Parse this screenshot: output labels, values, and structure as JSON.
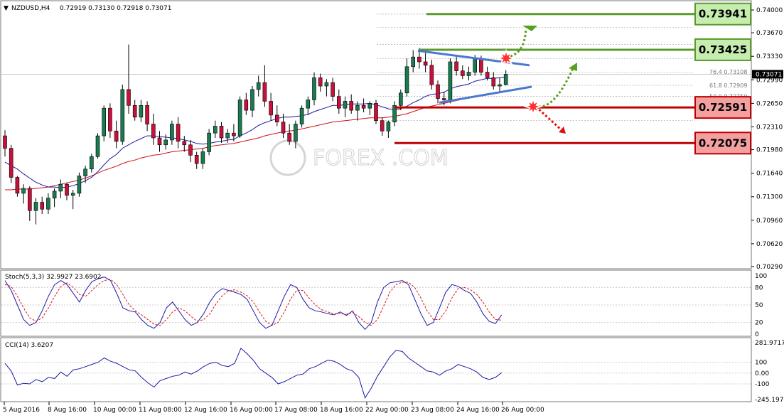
{
  "header": {
    "symbol": "NZDUSD,H4",
    "ohlc": "0.72919 0.73130 0.72918 0.73071"
  },
  "current_price_label": "0.73071",
  "price_axis_labels": [
    "0.74000",
    "0.73670",
    "0.73330",
    "0.72990",
    "0.72650",
    "0.72310",
    "0.71980",
    "0.71640",
    "0.71300",
    "0.70960",
    "0.70620",
    "0.70290"
  ],
  "time_axis_labels": [
    "5 Aug 2016",
    "8 Aug 16:00",
    "10 Aug 00:00",
    "11 Aug 08:00",
    "12 Aug 16:00",
    "16 Aug 00:00",
    "17 Aug 08:00",
    "18 Aug 16:00",
    "22 Aug 00:00",
    "23 Aug 08:00",
    "24 Aug 16:00",
    "26 Aug 00:00"
  ],
  "fib_labels": [
    {
      "text": "76.4  0.73108",
      "level": 0.73108
    },
    {
      "text": "61.8  0.72909",
      "level": 0.72909
    },
    {
      "text": "50.0  0.72750",
      "level": 0.7275
    }
  ],
  "levels": [
    {
      "label": "0.73941",
      "value": 0.73941,
      "type": "resistance",
      "color": "#5a9a2a",
      "bg": "#c6ecb0"
    },
    {
      "label": "0.73425",
      "value": 0.73425,
      "type": "resistance",
      "color": "#5a9a2a",
      "bg": "#c6ecb0"
    },
    {
      "label": "0.72591",
      "value": 0.72591,
      "type": "support",
      "color": "#c00000",
      "bg": "#f4a0a0"
    },
    {
      "label": "0.72075",
      "value": 0.72075,
      "type": "support",
      "color": "#c00000",
      "bg": "#f4a0a0"
    }
  ],
  "watermark": "FOREX  .COM",
  "stoch": {
    "title": "Stoch(5,3,3) 32.9927 23.6902",
    "axis_labels": [
      "100",
      "80",
      "50",
      "20",
      "0"
    ]
  },
  "cci": {
    "title": "CCI(14) 3.6207",
    "axis_labels": [
      "281.9717",
      "100",
      "0.00",
      "-100",
      "-245.1973"
    ]
  },
  "chart_data": {
    "type": "line",
    "title": "NZDUSD,H4",
    "ylim": [
      0.7029,
      0.74
    ],
    "candles": [
      {
        "o": 0.7218,
        "h": 0.7226,
        "l": 0.7188,
        "c": 0.72
      },
      {
        "o": 0.72,
        "h": 0.7205,
        "l": 0.715,
        "c": 0.7158
      },
      {
        "o": 0.7158,
        "h": 0.716,
        "l": 0.713,
        "c": 0.7135
      },
      {
        "o": 0.7135,
        "h": 0.7148,
        "l": 0.712,
        "c": 0.7142
      },
      {
        "o": 0.7142,
        "h": 0.7145,
        "l": 0.7095,
        "c": 0.711
      },
      {
        "o": 0.711,
        "h": 0.7128,
        "l": 0.709,
        "c": 0.7122
      },
      {
        "o": 0.7122,
        "h": 0.713,
        "l": 0.7105,
        "c": 0.7112
      },
      {
        "o": 0.7112,
        "h": 0.7135,
        "l": 0.7105,
        "c": 0.7128
      },
      {
        "o": 0.7128,
        "h": 0.7142,
        "l": 0.7115,
        "c": 0.7138
      },
      {
        "o": 0.7138,
        "h": 0.7155,
        "l": 0.7128,
        "c": 0.7148
      },
      {
        "o": 0.7148,
        "h": 0.715,
        "l": 0.7125,
        "c": 0.7132
      },
      {
        "o": 0.7132,
        "h": 0.714,
        "l": 0.7112,
        "c": 0.7135
      },
      {
        "o": 0.7135,
        "h": 0.7165,
        "l": 0.713,
        "c": 0.716
      },
      {
        "o": 0.716,
        "h": 0.7175,
        "l": 0.715,
        "c": 0.717
      },
      {
        "o": 0.717,
        "h": 0.7192,
        "l": 0.7165,
        "c": 0.7188
      },
      {
        "o": 0.7188,
        "h": 0.7222,
        "l": 0.7185,
        "c": 0.7218
      },
      {
        "o": 0.7218,
        "h": 0.7262,
        "l": 0.721,
        "c": 0.7258
      },
      {
        "o": 0.7258,
        "h": 0.7265,
        "l": 0.7215,
        "c": 0.7225
      },
      {
        "o": 0.7225,
        "h": 0.724,
        "l": 0.72,
        "c": 0.721
      },
      {
        "o": 0.721,
        "h": 0.7292,
        "l": 0.7205,
        "c": 0.7285
      },
      {
        "o": 0.7285,
        "h": 0.735,
        "l": 0.725,
        "c": 0.7262
      },
      {
        "o": 0.7262,
        "h": 0.727,
        "l": 0.724,
        "c": 0.7245
      },
      {
        "o": 0.7245,
        "h": 0.727,
        "l": 0.7238,
        "c": 0.7262
      },
      {
        "o": 0.7262,
        "h": 0.7268,
        "l": 0.7225,
        "c": 0.7235
      },
      {
        "o": 0.7235,
        "h": 0.725,
        "l": 0.7205,
        "c": 0.7215
      },
      {
        "o": 0.7215,
        "h": 0.7225,
        "l": 0.7195,
        "c": 0.7205
      },
      {
        "o": 0.7205,
        "h": 0.722,
        "l": 0.7198,
        "c": 0.7212
      },
      {
        "o": 0.7212,
        "h": 0.724,
        "l": 0.7205,
        "c": 0.7235
      },
      {
        "o": 0.7235,
        "h": 0.7245,
        "l": 0.72,
        "c": 0.721
      },
      {
        "o": 0.721,
        "h": 0.7218,
        "l": 0.7195,
        "c": 0.7205
      },
      {
        "o": 0.7205,
        "h": 0.7212,
        "l": 0.718,
        "c": 0.719
      },
      {
        "o": 0.719,
        "h": 0.7195,
        "l": 0.717,
        "c": 0.7178
      },
      {
        "o": 0.7178,
        "h": 0.72,
        "l": 0.717,
        "c": 0.7195
      },
      {
        "o": 0.7195,
        "h": 0.7228,
        "l": 0.719,
        "c": 0.7222
      },
      {
        "o": 0.7222,
        "h": 0.724,
        "l": 0.7215,
        "c": 0.7232
      },
      {
        "o": 0.7232,
        "h": 0.7238,
        "l": 0.7208,
        "c": 0.7215
      },
      {
        "o": 0.7215,
        "h": 0.7228,
        "l": 0.7208,
        "c": 0.7222
      },
      {
        "o": 0.7222,
        "h": 0.7235,
        "l": 0.721,
        "c": 0.7218
      },
      {
        "o": 0.7218,
        "h": 0.7275,
        "l": 0.7215,
        "c": 0.727
      },
      {
        "o": 0.727,
        "h": 0.728,
        "l": 0.7248,
        "c": 0.7255
      },
      {
        "o": 0.7255,
        "h": 0.729,
        "l": 0.7245,
        "c": 0.7285
      },
      {
        "o": 0.7285,
        "h": 0.7305,
        "l": 0.7275,
        "c": 0.7295
      },
      {
        "o": 0.7295,
        "h": 0.732,
        "l": 0.726,
        "c": 0.7268
      },
      {
        "o": 0.7268,
        "h": 0.728,
        "l": 0.724,
        "c": 0.7248
      },
      {
        "o": 0.7248,
        "h": 0.7262,
        "l": 0.7232,
        "c": 0.7238
      },
      {
        "o": 0.7238,
        "h": 0.725,
        "l": 0.7215,
        "c": 0.7222
      },
      {
        "o": 0.7222,
        "h": 0.7235,
        "l": 0.7205,
        "c": 0.721
      },
      {
        "o": 0.721,
        "h": 0.724,
        "l": 0.72,
        "c": 0.7235
      },
      {
        "o": 0.7235,
        "h": 0.7262,
        "l": 0.723,
        "c": 0.7258
      },
      {
        "o": 0.7258,
        "h": 0.7275,
        "l": 0.7248,
        "c": 0.727
      },
      {
        "o": 0.727,
        "h": 0.731,
        "l": 0.7262,
        "c": 0.7302
      },
      {
        "o": 0.7302,
        "h": 0.7308,
        "l": 0.7282,
        "c": 0.729
      },
      {
        "o": 0.729,
        "h": 0.73,
        "l": 0.7275,
        "c": 0.7295
      },
      {
        "o": 0.7295,
        "h": 0.7302,
        "l": 0.7268,
        "c": 0.7275
      },
      {
        "o": 0.7275,
        "h": 0.7285,
        "l": 0.725,
        "c": 0.7258
      },
      {
        "o": 0.7258,
        "h": 0.7275,
        "l": 0.7245,
        "c": 0.7268
      },
      {
        "o": 0.7268,
        "h": 0.7278,
        "l": 0.725,
        "c": 0.7255
      },
      {
        "o": 0.7255,
        "h": 0.7268,
        "l": 0.724,
        "c": 0.7262
      },
      {
        "o": 0.7262,
        "h": 0.7272,
        "l": 0.7252,
        "c": 0.7258
      },
      {
        "o": 0.7258,
        "h": 0.7268,
        "l": 0.7248,
        "c": 0.7265
      },
      {
        "o": 0.7265,
        "h": 0.727,
        "l": 0.7235,
        "c": 0.724
      },
      {
        "o": 0.724,
        "h": 0.7245,
        "l": 0.7218,
        "c": 0.7225
      },
      {
        "o": 0.7225,
        "h": 0.724,
        "l": 0.7215,
        "c": 0.7238
      },
      {
        "o": 0.7238,
        "h": 0.7268,
        "l": 0.7232,
        "c": 0.7262
      },
      {
        "o": 0.7262,
        "h": 0.7285,
        "l": 0.7255,
        "c": 0.728
      },
      {
        "o": 0.728,
        "h": 0.733,
        "l": 0.7275,
        "c": 0.7318
      },
      {
        "o": 0.7318,
        "h": 0.7342,
        "l": 0.731,
        "c": 0.7332
      },
      {
        "o": 0.7332,
        "h": 0.7345,
        "l": 0.7315,
        "c": 0.7325
      },
      {
        "o": 0.7325,
        "h": 0.7338,
        "l": 0.731,
        "c": 0.732
      },
      {
        "o": 0.732,
        "h": 0.7328,
        "l": 0.7285,
        "c": 0.7292
      },
      {
        "o": 0.7292,
        "h": 0.7298,
        "l": 0.7265,
        "c": 0.7272
      },
      {
        "o": 0.7272,
        "h": 0.7282,
        "l": 0.7262,
        "c": 0.727
      },
      {
        "o": 0.727,
        "h": 0.733,
        "l": 0.7265,
        "c": 0.7325
      },
      {
        "o": 0.7325,
        "h": 0.7332,
        "l": 0.7305,
        "c": 0.7312
      },
      {
        "o": 0.7312,
        "h": 0.732,
        "l": 0.73,
        "c": 0.7305
      },
      {
        "o": 0.7305,
        "h": 0.7318,
        "l": 0.7298,
        "c": 0.731
      },
      {
        "o": 0.731,
        "h": 0.7335,
        "l": 0.7305,
        "c": 0.733
      },
      {
        "o": 0.733,
        "h": 0.7334,
        "l": 0.7305,
        "c": 0.731
      },
      {
        "o": 0.731,
        "h": 0.7318,
        "l": 0.7298,
        "c": 0.7302
      },
      {
        "o": 0.7302,
        "h": 0.731,
        "l": 0.7285,
        "c": 0.729
      },
      {
        "o": 0.729,
        "h": 0.7302,
        "l": 0.7282,
        "c": 0.7292
      },
      {
        "o": 0.7292,
        "h": 0.7313,
        "l": 0.7291,
        "c": 0.7307
      }
    ],
    "sma_blue": [
      0.718,
      0.7175,
      0.717,
      0.7163,
      0.7157,
      0.7151,
      0.7147,
      0.7144,
      0.7144,
      0.7143,
      0.7144,
      0.7146,
      0.7149,
      0.7153,
      0.7158,
      0.7166,
      0.7176,
      0.7185,
      0.7191,
      0.72,
      0.7205,
      0.721,
      0.7214,
      0.7218,
      0.7218,
      0.7217,
      0.7216,
      0.7215,
      0.7214,
      0.7212,
      0.721,
      0.7207,
      0.7206,
      0.7207,
      0.7209,
      0.721,
      0.7212,
      0.7213,
      0.7218,
      0.7222,
      0.7227,
      0.7233,
      0.7237,
      0.724,
      0.7243,
      0.7245,
      0.7245,
      0.7246,
      0.7247,
      0.7249,
      0.7253,
      0.7256,
      0.7259,
      0.7262,
      0.7262,
      0.7263,
      0.7264,
      0.7264,
      0.7264,
      0.7265,
      0.7263,
      0.726,
      0.7257,
      0.7256,
      0.7257,
      0.7261,
      0.7266,
      0.727,
      0.7275,
      0.7278,
      0.7279,
      0.7281,
      0.7286,
      0.7289,
      0.7291,
      0.7293,
      0.7297,
      0.7299,
      0.7301,
      0.7301,
      0.7302,
      0.7303
    ],
    "sma_red": [
      0.714,
      0.714,
      0.7141,
      0.7141,
      0.7141,
      0.7142,
      0.7143,
      0.7144,
      0.7146,
      0.7148,
      0.715,
      0.7152,
      0.7154,
      0.7157,
      0.716,
      0.7164,
      0.7168,
      0.7171,
      0.7174,
      0.7178,
      0.7181,
      0.7183,
      0.7186,
      0.7188,
      0.719,
      0.7191,
      0.7193,
      0.7195,
      0.7196,
      0.7197,
      0.7198,
      0.7199,
      0.72,
      0.7202,
      0.7204,
      0.7205,
      0.7206,
      0.7207,
      0.7209,
      0.7211,
      0.7213,
      0.7215,
      0.7218,
      0.722,
      0.7222,
      0.7224,
      0.7225,
      0.7226,
      0.7228,
      0.723,
      0.7232,
      0.7234,
      0.7236,
      0.7238,
      0.7239,
      0.724,
      0.7241,
      0.7242,
      0.7243,
      0.7244,
      0.7244,
      0.7244,
      0.7245,
      0.7246,
      0.7248,
      0.725,
      0.7253,
      0.7256,
      0.7259,
      0.7261,
      0.7263,
      0.7265,
      0.7267,
      0.7269,
      0.7271,
      0.7273,
      0.7275,
      0.7277,
      0.7279,
      0.728,
      0.7281,
      0.7282
    ],
    "stoch_main": [
      92,
      75,
      50,
      25,
      15,
      20,
      40,
      65,
      85,
      92,
      85,
      70,
      55,
      75,
      90,
      95,
      98,
      92,
      70,
      45,
      40,
      38,
      25,
      15,
      10,
      20,
      45,
      55,
      40,
      25,
      15,
      20,
      35,
      55,
      70,
      78,
      75,
      72,
      68,
      60,
      40,
      20,
      10,
      15,
      40,
      65,
      85,
      80,
      60,
      45,
      40,
      38,
      35,
      33,
      38,
      32,
      40,
      20,
      8,
      20,
      55,
      80,
      88,
      90,
      92,
      85,
      60,
      35,
      15,
      20,
      45,
      72,
      85,
      82,
      75,
      70,
      55,
      35,
      22,
      18,
      33
    ],
    "stoch_signal": [
      85,
      82,
      65,
      45,
      28,
      22,
      28,
      45,
      65,
      82,
      88,
      80,
      68,
      65,
      75,
      85,
      92,
      94,
      85,
      68,
      50,
      40,
      33,
      25,
      17,
      15,
      25,
      38,
      45,
      40,
      30,
      22,
      25,
      35,
      52,
      66,
      74,
      76,
      72,
      66,
      55,
      38,
      22,
      15,
      20,
      38,
      60,
      75,
      75,
      62,
      50,
      42,
      38,
      35,
      35,
      34,
      37,
      30,
      20,
      15,
      25,
      48,
      72,
      85,
      89,
      89,
      80,
      62,
      40,
      25,
      25,
      40,
      62,
      78,
      80,
      76,
      68,
      55,
      38,
      25,
      24
    ],
    "cci_vals": [
      90,
      20,
      -110,
      -95,
      -100,
      -60,
      -80,
      -40,
      -50,
      10,
      -30,
      30,
      40,
      60,
      80,
      100,
      140,
      110,
      90,
      60,
      30,
      20,
      -40,
      -90,
      -130,
      -70,
      -50,
      -30,
      -20,
      10,
      -10,
      20,
      60,
      90,
      100,
      70,
      60,
      90,
      230,
      180,
      120,
      40,
      0,
      -40,
      -100,
      -80,
      -50,
      -20,
      -10,
      40,
      60,
      90,
      120,
      110,
      80,
      40,
      20,
      -40,
      -230,
      -140,
      -30,
      60,
      150,
      210,
      200,
      140,
      100,
      60,
      20,
      10,
      -20,
      20,
      40,
      80,
      60,
      40,
      10,
      -40,
      -60,
      -40,
      3.62
    ]
  }
}
